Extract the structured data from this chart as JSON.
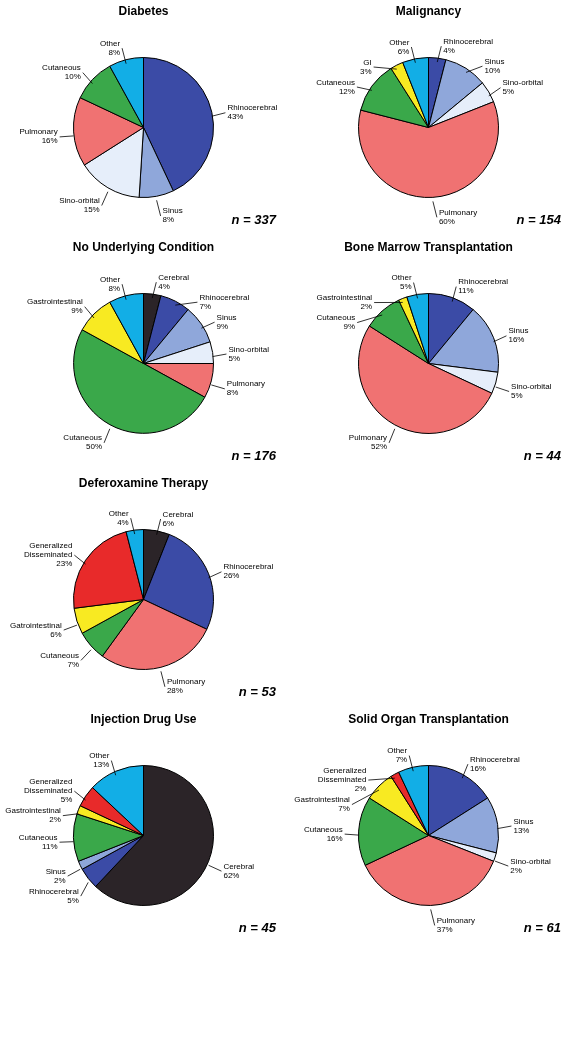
{
  "chart_data": [
    {
      "type": "pie",
      "title": "Diabetes",
      "categories": [
        "Rhinocerebral",
        "Sinus",
        "Sino-orbital",
        "Pulmonary",
        "Cutaneous",
        "Other"
      ],
      "values": [
        43,
        8,
        15,
        16,
        10,
        8
      ],
      "value_labels": [
        "43%",
        "8%",
        "15%",
        "16%",
        "10%",
        "8%"
      ],
      "colors": [
        "#3b4ba6",
        "#8fa7da",
        "#e6eefa",
        "#f07272",
        "#3aa84a",
        "#12aee6"
      ],
      "annotations": [
        "n = 337"
      ]
    },
    {
      "type": "pie",
      "title": "Malignancy",
      "categories": [
        "Rhinocerebral",
        "Sinus",
        "Sino-orbital",
        "Pulmonary",
        "Cutaneous",
        "GI",
        "Other"
      ],
      "values": [
        4,
        10,
        5,
        60,
        12,
        3,
        6
      ],
      "value_labels": [
        "4%",
        "10%",
        "5%",
        "60%",
        "12%",
        "3%",
        "6%"
      ],
      "colors": [
        "#3b4ba6",
        "#8fa7da",
        "#e6eefa",
        "#f07272",
        "#3aa84a",
        "#f8ea22",
        "#12aee6"
      ],
      "annotations": [
        "n = 154"
      ]
    },
    {
      "type": "pie",
      "title": "No Underlying Condition",
      "categories": [
        "Cerebral",
        "Rhinocerebral",
        "Sinus",
        "Sino-orbital",
        "Pulmonary",
        "Cutaneous",
        "Gastrointestinal",
        "Other"
      ],
      "values": [
        4,
        7,
        9,
        5,
        8,
        50,
        9,
        8
      ],
      "value_labels": [
        "4%",
        "7%",
        "9%",
        "5%",
        "8%",
        "50%",
        "9%",
        "8%"
      ],
      "colors": [
        "#2b2428",
        "#3b4ba6",
        "#8fa7da",
        "#e6eefa",
        "#f07272",
        "#3aa84a",
        "#f8ea22",
        "#12aee6"
      ],
      "annotations": [
        "n = 176"
      ]
    },
    {
      "type": "pie",
      "title": "Bone Marrow Transplantation",
      "categories": [
        "Rhinocerebral",
        "Sinus",
        "Sino-orbital",
        "Pulmonary",
        "Cutaneous",
        "Gastrointestinal",
        "Other"
      ],
      "values": [
        11,
        16,
        5,
        52,
        9,
        2,
        5
      ],
      "value_labels": [
        "11%",
        "16%",
        "5%",
        "52%",
        "9%",
        "2%",
        "5%"
      ],
      "colors": [
        "#3b4ba6",
        "#8fa7da",
        "#e6eefa",
        "#f07272",
        "#3aa84a",
        "#f8ea22",
        "#12aee6"
      ],
      "annotations": [
        "n = 44"
      ]
    },
    {
      "type": "pie",
      "title": "Deferoxamine Therapy",
      "categories": [
        "Cerebral",
        "Rhinocerebral",
        "Pulmonary",
        "Cutaneous",
        "Gatrointestinal",
        "Generalized Disseminated",
        "Other"
      ],
      "values": [
        6,
        26,
        28,
        7,
        6,
        23,
        4
      ],
      "value_labels": [
        "6%",
        "26%",
        "28%",
        "7%",
        "6%",
        "23%",
        "4%"
      ],
      "colors": [
        "#2b2428",
        "#3b4ba6",
        "#f07272",
        "#3aa84a",
        "#f8ea22",
        "#e82a2a",
        "#12aee6"
      ],
      "annotations": [
        "n = 53"
      ]
    },
    {
      "type": "pie",
      "title": "Injection Drug Use",
      "categories": [
        "Cerebral",
        "Rhinocerebral",
        "Sinus",
        "Cutaneous",
        "Gastrointestinal",
        "Generalized Disseminated",
        "Other"
      ],
      "values": [
        62,
        5,
        2,
        11,
        2,
        5,
        13
      ],
      "value_labels": [
        "62%",
        "5%",
        "2%",
        "11%",
        "2%",
        "5%",
        "13%"
      ],
      "colors": [
        "#2b2428",
        "#3b4ba6",
        "#8fa7da",
        "#3aa84a",
        "#f8ea22",
        "#e82a2a",
        "#12aee6"
      ],
      "annotations": [
        "n = 45"
      ]
    },
    {
      "type": "pie",
      "title": "Solid Organ Transplantation",
      "categories": [
        "Rhinocerebral",
        "Sinus",
        "Sino-orbital",
        "Pulmonary",
        "Cutaneous",
        "Gastrointestinal",
        "Generalized Disseminated",
        "Other"
      ],
      "values": [
        16,
        13,
        2,
        37,
        16,
        7,
        2,
        7
      ],
      "value_labels": [
        "16%",
        "13%",
        "2%",
        "37%",
        "16%",
        "7%",
        "2%",
        "7%"
      ],
      "colors": [
        "#3b4ba6",
        "#8fa7da",
        "#e6eefa",
        "#f07272",
        "#3aa84a",
        "#f8ea22",
        "#e82a2a",
        "#12aee6"
      ],
      "annotations": [
        "n = 61"
      ]
    }
  ]
}
